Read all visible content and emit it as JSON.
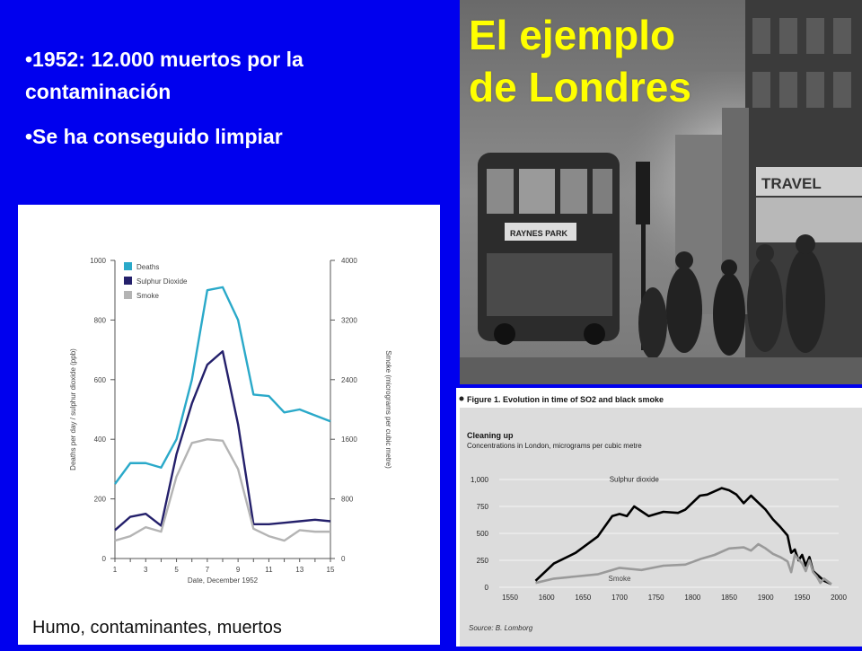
{
  "bullets": [
    "•1952: 12.000 muertos por la contaminación",
    "•Se ha conseguido limpiar"
  ],
  "photo": {
    "title_line1": "El ejemplo",
    "title_line2": "de Londres",
    "sign_text": "TRAVEL",
    "bus_text": "RAYNES PARK"
  },
  "caption": "Humo, contaminantes, muertos",
  "colors": {
    "deaths": "#2aa9c9",
    "so2": "#24206b",
    "smoke": "#b4b4b4",
    "background": "#0000ee",
    "title": "#ffff00"
  },
  "chart_data": [
    {
      "type": "line",
      "xlabel": "Date, December 1952",
      "ylabel": "Deaths per day / sulphur dioxide (ppb)",
      "ylabel_right": "Smoke (micrograms per cubic metre)",
      "x": [
        1,
        2,
        3,
        4,
        5,
        6,
        7,
        8,
        9,
        10,
        11,
        12,
        13,
        14,
        15
      ],
      "xticks": [
        "1",
        "3",
        "5",
        "7",
        "9",
        "11",
        "13",
        "15"
      ],
      "ylim": [
        0,
        1000
      ],
      "yticks": [
        "0",
        "200",
        "400",
        "600",
        "800",
        "1000"
      ],
      "ylim_right": [
        0,
        4000
      ],
      "yticks_right": [
        "0",
        "800",
        "1600",
        "2400",
        "3200",
        "4000"
      ],
      "legend_position": "top-left",
      "series": [
        {
          "name": "Deaths",
          "axis": "left",
          "values": [
            250,
            320,
            320,
            305,
            400,
            600,
            900,
            910,
            800,
            550,
            545,
            490,
            500,
            480,
            460
          ]
        },
        {
          "name": "Sulphur Dioxide",
          "axis": "left",
          "values": [
            95,
            140,
            150,
            110,
            350,
            520,
            650,
            695,
            450,
            115,
            115,
            120,
            125,
            130,
            125
          ]
        },
        {
          "name": "Smoke",
          "axis": "right",
          "values": [
            240,
            300,
            420,
            360,
            1100,
            1550,
            1600,
            1580,
            1200,
            400,
            300,
            240,
            380,
            360,
            360
          ]
        }
      ]
    },
    {
      "type": "line",
      "figure_title": "Figure 1. Evolution in time of SO2 and black smoke",
      "title": "Cleaning up",
      "subtitle": "Concentrations in London, micrograms per cubic metre",
      "source": "Source: B. Lomborg",
      "xticks": [
        "1550",
        "1600",
        "1650",
        "1700",
        "1750",
        "1800",
        "1850",
        "1900",
        "1950",
        "2000"
      ],
      "xlim": [
        1550,
        2000
      ],
      "yticks": [
        "0",
        "250",
        "500",
        "750",
        "1,000"
      ],
      "ylim": [
        0,
        1100
      ],
      "series": [
        {
          "name": "Sulphur dioxide",
          "x": [
            1585,
            1610,
            1640,
            1670,
            1690,
            1700,
            1710,
            1720,
            1740,
            1760,
            1780,
            1790,
            1810,
            1820,
            1840,
            1850,
            1860,
            1870,
            1880,
            1900,
            1910,
            1920,
            1930,
            1935,
            1940,
            1945,
            1950,
            1955,
            1960,
            1965,
            1970,
            1980,
            1990
          ],
          "values": [
            60,
            220,
            320,
            470,
            660,
            680,
            660,
            750,
            660,
            700,
            690,
            720,
            850,
            860,
            920,
            900,
            860,
            780,
            850,
            720,
            630,
            560,
            480,
            320,
            350,
            250,
            300,
            200,
            280,
            150,
            120,
            60,
            30
          ]
        },
        {
          "name": "Smoke",
          "x": [
            1585,
            1610,
            1640,
            1670,
            1700,
            1730,
            1760,
            1790,
            1810,
            1830,
            1850,
            1870,
            1880,
            1890,
            1900,
            1910,
            1920,
            1930,
            1935,
            1940,
            1950,
            1955,
            1960,
            1965,
            1970,
            1975,
            1980,
            1990
          ],
          "values": [
            40,
            80,
            100,
            120,
            180,
            160,
            200,
            210,
            260,
            300,
            360,
            370,
            340,
            400,
            360,
            310,
            280,
            240,
            140,
            300,
            220,
            150,
            250,
            140,
            100,
            40,
            80,
            30
          ]
        }
      ]
    }
  ]
}
